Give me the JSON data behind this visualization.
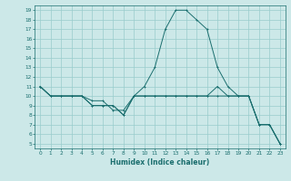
{
  "title": "",
  "xlabel": "Humidex (Indice chaleur)",
  "ylabel": "",
  "bg_color": "#cce8e8",
  "grid_color": "#99cccc",
  "line_color": "#1a6e6e",
  "xlim": [
    -0.5,
    23.5
  ],
  "ylim": [
    4.5,
    19.5
  ],
  "xticks": [
    0,
    1,
    2,
    3,
    4,
    5,
    6,
    7,
    8,
    9,
    10,
    11,
    12,
    13,
    14,
    15,
    16,
    17,
    18,
    19,
    20,
    21,
    22,
    23
  ],
  "yticks": [
    5,
    6,
    7,
    8,
    9,
    10,
    11,
    12,
    13,
    14,
    15,
    16,
    17,
    18,
    19
  ],
  "line1_x": [
    0,
    1,
    2,
    3,
    4,
    5,
    6,
    7,
    8,
    9,
    10,
    11,
    12,
    13,
    14,
    15,
    16,
    17,
    18,
    19,
    20,
    21,
    22,
    23
  ],
  "line1_y": [
    11,
    10,
    10,
    10,
    10,
    9,
    9,
    9,
    8,
    10,
    10,
    10,
    10,
    10,
    10,
    10,
    10,
    11,
    10,
    10,
    10,
    7,
    7,
    5
  ],
  "line2_x": [
    0,
    1,
    2,
    3,
    4,
    5,
    6,
    7,
    8,
    9,
    10,
    11,
    12,
    13,
    14,
    15,
    16,
    17,
    18,
    19,
    20,
    21,
    22,
    23
  ],
  "line2_y": [
    11,
    10,
    10,
    10,
    10,
    9,
    9,
    9,
    8,
    10,
    11,
    13,
    17,
    19,
    19,
    18,
    17,
    13,
    11,
    10,
    10,
    7,
    7,
    5
  ],
  "line3_x": [
    0,
    1,
    2,
    3,
    4,
    5,
    6,
    7,
    8,
    9,
    10,
    11,
    12,
    13,
    14,
    15,
    16,
    17,
    18,
    19,
    20,
    21,
    22,
    23
  ],
  "line3_y": [
    11,
    10,
    10,
    10,
    10,
    9.5,
    9.5,
    8.5,
    8.5,
    10,
    10,
    10,
    10,
    10,
    10,
    10,
    10,
    10,
    10,
    10,
    10,
    7,
    7,
    5
  ]
}
